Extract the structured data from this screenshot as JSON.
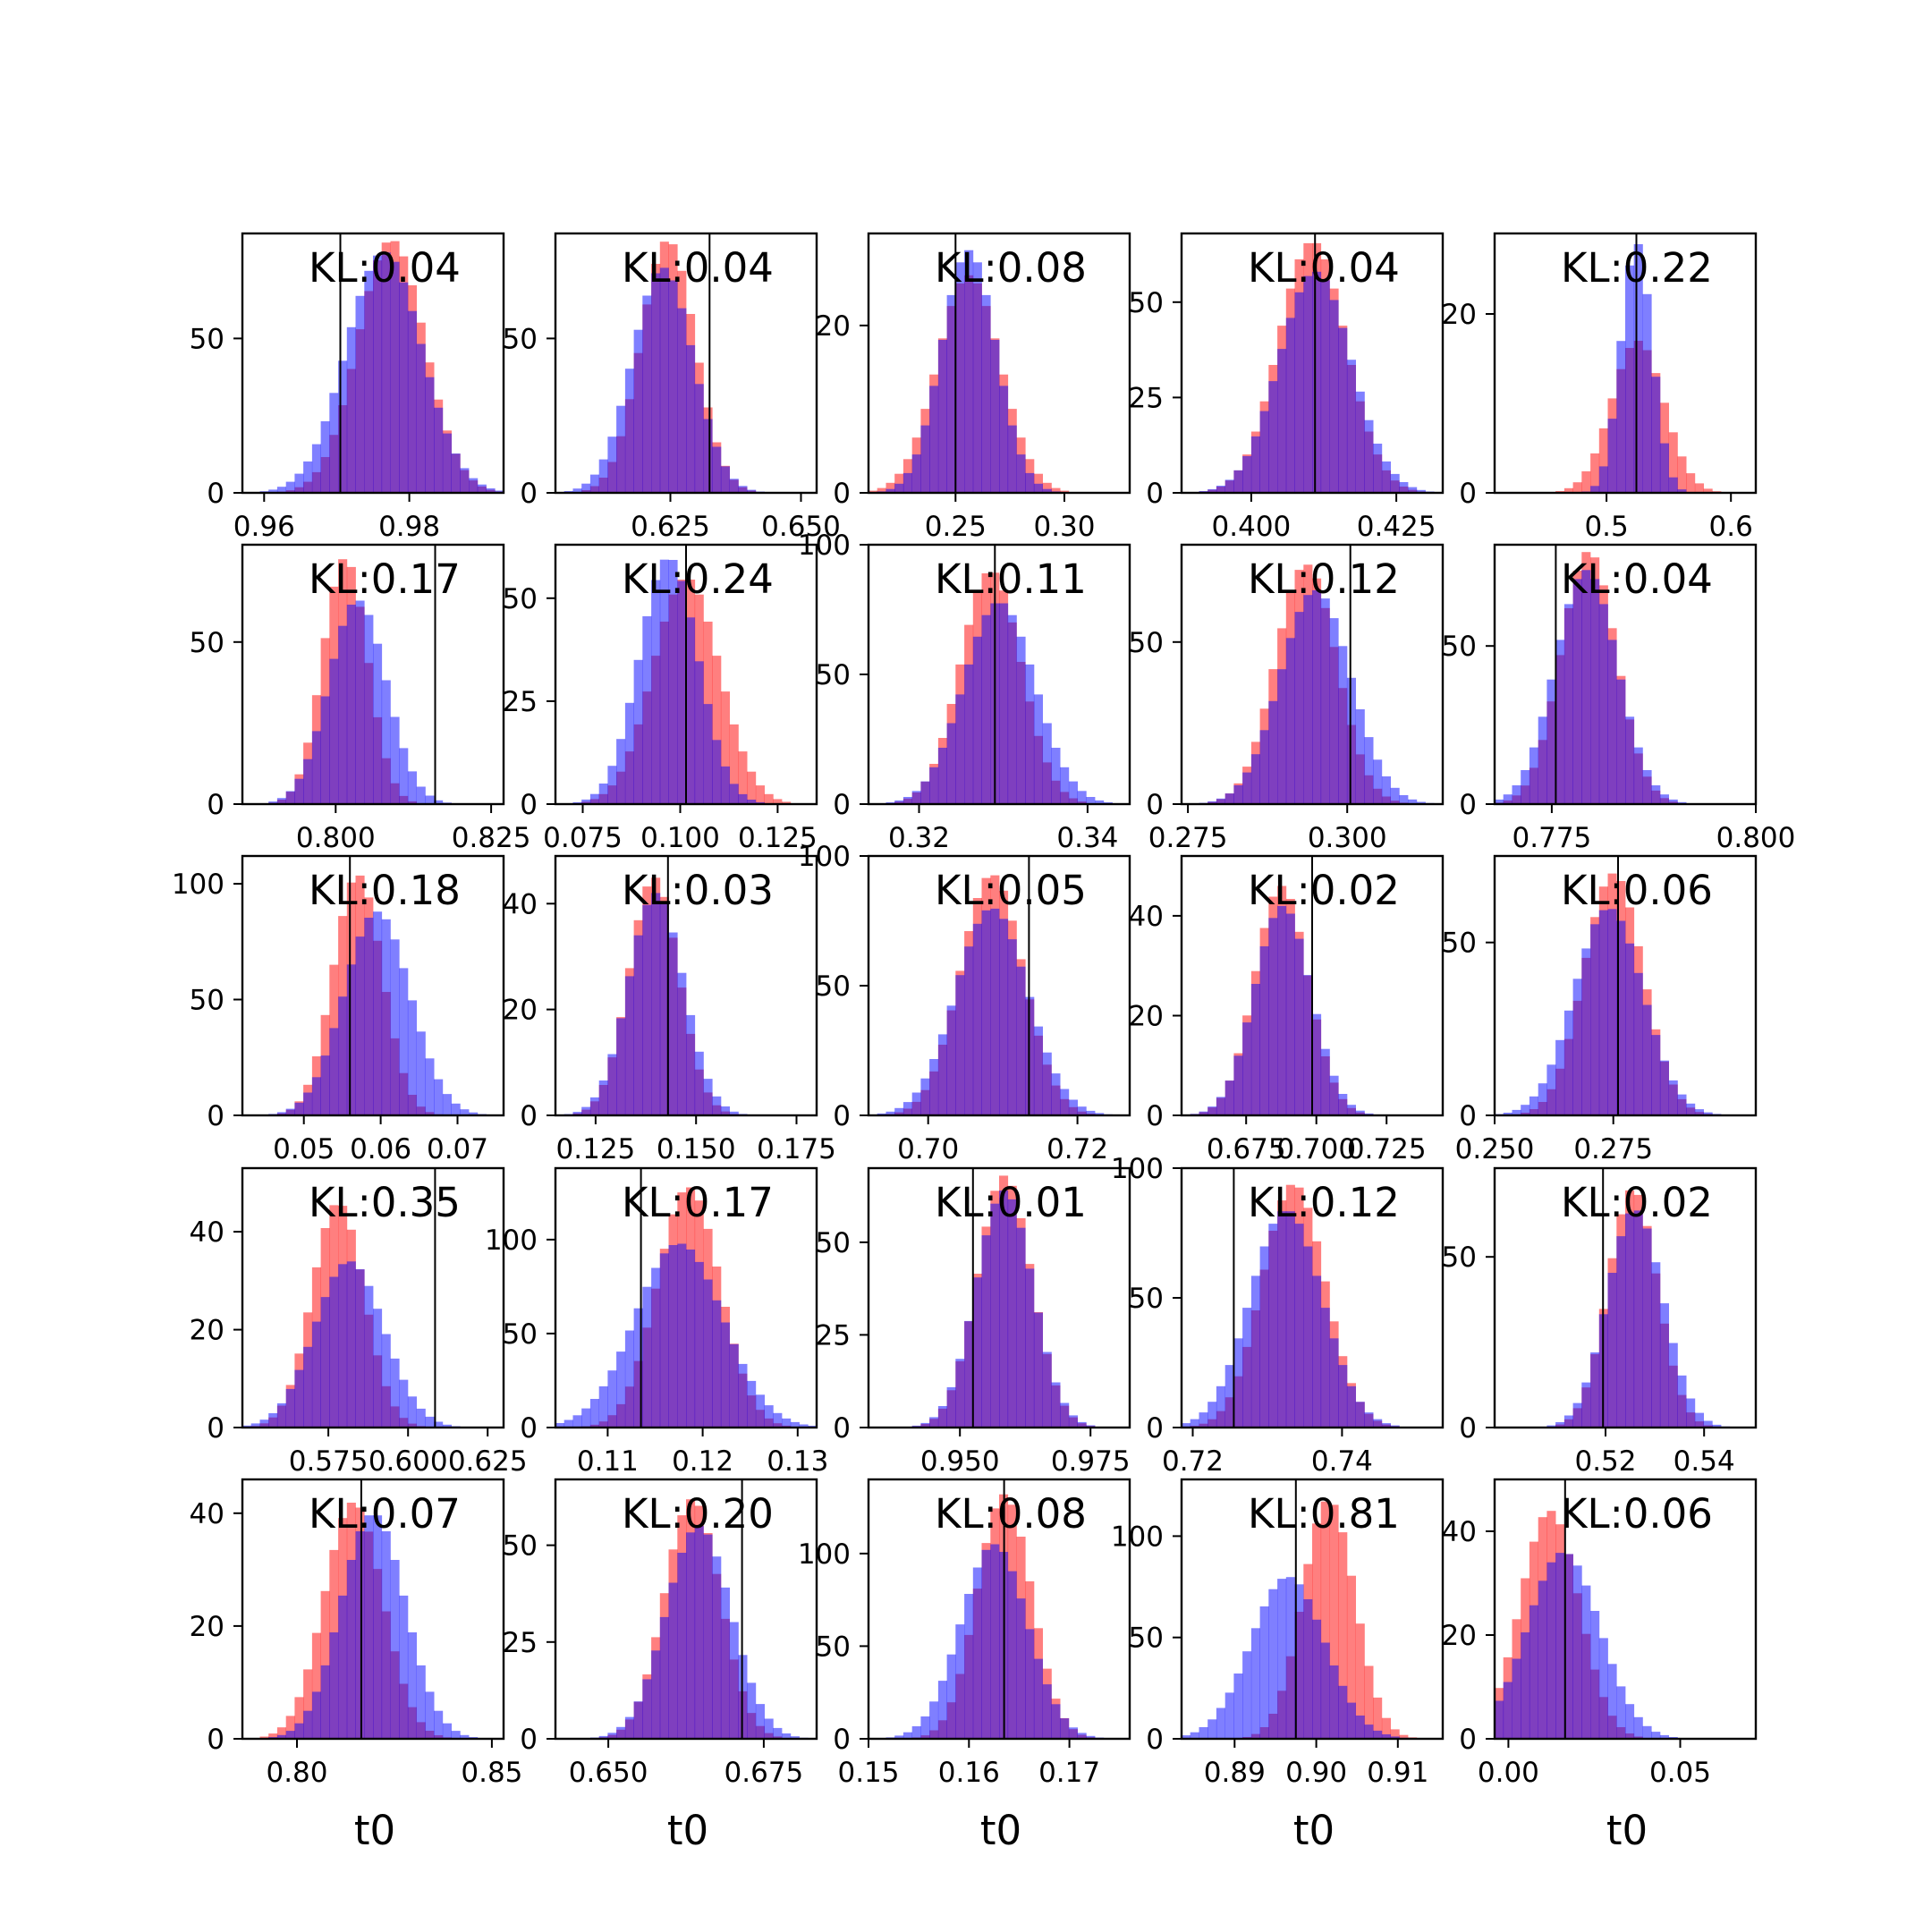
{
  "colors": {
    "red": "#ff0000",
    "blue": "#0000ff",
    "overlap": "#7f3fbf",
    "marker": "#000000",
    "frame": "#000000"
  },
  "chart_data": [
    {
      "type": "histogram",
      "title": "KL:0.04",
      "xlabel": "",
      "xlim": [
        0.957,
        0.993
      ],
      "ylim": [
        0,
        84
      ],
      "xticks": [
        {
          "v": 0.96,
          "l": "0.96"
        },
        {
          "v": 0.98,
          "l": "0.98"
        }
      ],
      "yticks": [
        {
          "v": 0,
          "l": "0"
        },
        {
          "v": 50,
          "l": "50"
        }
      ],
      "marker": 0.9705,
      "red": {
        "mu": 0.9775,
        "sd": 0.0046,
        "peak": 82
      },
      "blue": {
        "mu": 0.9765,
        "sd": 0.0052,
        "peak": 78
      }
    },
    {
      "type": "histogram",
      "title": "KL:0.04",
      "xlabel": "",
      "xlim": [
        0.603,
        0.653
      ],
      "ylim": [
        0,
        84
      ],
      "xticks": [
        {
          "v": 0.625,
          "l": "0.625"
        },
        {
          "v": 0.65,
          "l": "0.650"
        }
      ],
      "yticks": [
        {
          "v": 0,
          "l": "0"
        },
        {
          "v": 50,
          "l": "50"
        }
      ],
      "marker": 0.6325,
      "red": {
        "mu": 0.6245,
        "sd": 0.0052,
        "peak": 82
      },
      "blue": {
        "mu": 0.6235,
        "sd": 0.0058,
        "peak": 73
      }
    },
    {
      "type": "histogram",
      "title": "KL:0.08",
      "xlabel": "",
      "xlim": [
        0.21,
        0.33
      ],
      "ylim": [
        0,
        31
      ],
      "xticks": [
        {
          "v": 0.25,
          "l": "0.25"
        },
        {
          "v": 0.3,
          "l": "0.30"
        }
      ],
      "yticks": [
        {
          "v": 0,
          "l": "0"
        },
        {
          "v": 20,
          "l": "20"
        }
      ],
      "marker": 0.25,
      "red": {
        "mu": 0.256,
        "sd": 0.0145,
        "peak": 26
      },
      "blue": {
        "mu": 0.256,
        "sd": 0.0125,
        "peak": 29
      }
    },
    {
      "type": "histogram",
      "title": "KL:0.04",
      "xlabel": "",
      "xlim": [
        0.388,
        0.433
      ],
      "ylim": [
        0,
        68
      ],
      "xticks": [
        {
          "v": 0.4,
          "l": "0.400"
        },
        {
          "v": 0.425,
          "l": "0.425"
        }
      ],
      "yticks": [
        {
          "v": 0,
          "l": "0"
        },
        {
          "v": 25,
          "l": "25"
        },
        {
          "v": 50,
          "l": "50"
        }
      ],
      "marker": 0.411,
      "red": {
        "mu": 0.4105,
        "sd": 0.0058,
        "peak": 66
      },
      "blue": {
        "mu": 0.411,
        "sd": 0.0062,
        "peak": 58
      }
    },
    {
      "type": "histogram",
      "title": "KL:0.22",
      "xlabel": "",
      "xlim": [
        0.41,
        0.62
      ],
      "ylim": [
        0,
        29
      ],
      "xticks": [
        {
          "v": 0.5,
          "l": "0.5"
        },
        {
          "v": 0.6,
          "l": "0.6"
        }
      ],
      "yticks": [
        {
          "v": 0,
          "l": "0"
        },
        {
          "v": 20,
          "l": "20"
        }
      ],
      "marker": 0.524,
      "red": {
        "mu": 0.525,
        "sd": 0.021,
        "peak": 17
      },
      "blue": {
        "mu": 0.524,
        "sd": 0.0125,
        "peak": 28
      }
    },
    {
      "type": "histogram",
      "title": "KL:0.17",
      "xlabel": "",
      "xlim": [
        0.785,
        0.827
      ],
      "ylim": [
        0,
        80
      ],
      "xticks": [
        {
          "v": 0.8,
          "l": "0.800"
        },
        {
          "v": 0.825,
          "l": "0.825"
        }
      ],
      "yticks": [
        {
          "v": 0,
          "l": "0"
        },
        {
          "v": 50,
          "l": "50"
        }
      ],
      "marker": 0.816,
      "red": {
        "mu": 0.8015,
        "sd": 0.0036,
        "peak": 76
      },
      "blue": {
        "mu": 0.8035,
        "sd": 0.0046,
        "peak": 63
      }
    },
    {
      "type": "histogram",
      "title": "KL:0.24",
      "xlabel": "",
      "xlim": [
        0.068,
        0.135
      ],
      "ylim": [
        0,
        63
      ],
      "xticks": [
        {
          "v": 0.075,
          "l": "0.075"
        },
        {
          "v": 0.1,
          "l": "0.100"
        },
        {
          "v": 0.125,
          "l": "0.125"
        }
      ],
      "yticks": [
        {
          "v": 0,
          "l": "0"
        },
        {
          "v": 25,
          "l": "25"
        },
        {
          "v": 50,
          "l": "50"
        }
      ],
      "marker": 0.1015,
      "red": {
        "mu": 0.1015,
        "sd": 0.0085,
        "peak": 55
      },
      "blue": {
        "mu": 0.097,
        "sd": 0.0075,
        "peak": 60
      }
    },
    {
      "type": "histogram",
      "title": "KL:0.11",
      "xlabel": "",
      "xlim": [
        0.314,
        0.345
      ],
      "ylim": [
        0,
        100
      ],
      "xticks": [
        {
          "v": 0.32,
          "l": "0.32"
        },
        {
          "v": 0.34,
          "l": "0.34"
        }
      ],
      "yticks": [
        {
          "v": 0,
          "l": "0"
        },
        {
          "v": 50,
          "l": "50"
        },
        {
          "v": 100,
          "l": "100"
        }
      ],
      "marker": 0.329,
      "red": {
        "mu": 0.3285,
        "sd": 0.0036,
        "peak": 90
      },
      "blue": {
        "mu": 0.3295,
        "sd": 0.0042,
        "peak": 78
      }
    },
    {
      "type": "histogram",
      "title": "KL:0.12",
      "xlabel": "",
      "xlim": [
        0.274,
        0.315
      ],
      "ylim": [
        0,
        80
      ],
      "xticks": [
        {
          "v": 0.275,
          "l": "0.275"
        },
        {
          "v": 0.3,
          "l": "0.300"
        }
      ],
      "yticks": [
        {
          "v": 0,
          "l": "0"
        },
        {
          "v": 50,
          "l": "50"
        }
      ],
      "marker": 0.3005,
      "red": {
        "mu": 0.2935,
        "sd": 0.0048,
        "peak": 74
      },
      "blue": {
        "mu": 0.295,
        "sd": 0.0055,
        "peak": 66
      }
    },
    {
      "type": "histogram",
      "title": "KL:0.04",
      "xlabel": "",
      "xlim": [
        0.768,
        0.8
      ],
      "ylim": [
        0,
        82
      ],
      "xticks": [
        {
          "v": 0.775,
          "l": "0.775"
        },
        {
          "v": 0.8,
          "l": "0.800"
        }
      ],
      "yticks": [
        {
          "v": 0,
          "l": "0"
        },
        {
          "v": 50,
          "l": "50"
        }
      ],
      "marker": 0.7755,
      "red": {
        "mu": 0.7795,
        "sd": 0.0034,
        "peak": 80
      },
      "blue": {
        "mu": 0.7792,
        "sd": 0.0038,
        "peak": 74
      }
    },
    {
      "type": "histogram",
      "title": "KL:0.18",
      "xlabel": "",
      "xlim": [
        0.042,
        0.076
      ],
      "ylim": [
        0,
        112
      ],
      "xticks": [
        {
          "v": 0.05,
          "l": "0.05"
        },
        {
          "v": 0.06,
          "l": "0.06"
        },
        {
          "v": 0.07,
          "l": "0.07"
        }
      ],
      "yticks": [
        {
          "v": 0,
          "l": "0"
        },
        {
          "v": 50,
          "l": "50"
        },
        {
          "v": 100,
          "l": "100"
        }
      ],
      "marker": 0.056,
      "red": {
        "mu": 0.057,
        "sd": 0.0032,
        "peak": 104
      },
      "blue": {
        "mu": 0.0595,
        "sd": 0.0043,
        "peak": 88
      }
    },
    {
      "type": "histogram",
      "title": "KL:0.03",
      "xlabel": "",
      "xlim": [
        0.115,
        0.18
      ],
      "ylim": [
        0,
        49
      ],
      "xticks": [
        {
          "v": 0.125,
          "l": "0.125"
        },
        {
          "v": 0.15,
          "l": "0.150"
        },
        {
          "v": 0.175,
          "l": "0.175"
        }
      ],
      "yticks": [
        {
          "v": 0,
          "l": "0"
        },
        {
          "v": 20,
          "l": "20"
        },
        {
          "v": 40,
          "l": "40"
        }
      ],
      "marker": 0.143,
      "red": {
        "mu": 0.1395,
        "sd": 0.0062,
        "peak": 45
      },
      "blue": {
        "mu": 0.14,
        "sd": 0.0068,
        "peak": 42
      }
    },
    {
      "type": "histogram",
      "title": "KL:0.05",
      "xlabel": "",
      "xlim": [
        0.692,
        0.727
      ],
      "ylim": [
        0,
        100
      ],
      "xticks": [
        {
          "v": 0.7,
          "l": "0.70"
        },
        {
          "v": 0.72,
          "l": "0.72"
        }
      ],
      "yticks": [
        {
          "v": 0,
          "l": "0"
        },
        {
          "v": 50,
          "l": "50"
        },
        {
          "v": 100,
          "l": "100"
        }
      ],
      "marker": 0.7135,
      "red": {
        "mu": 0.7085,
        "sd": 0.0042,
        "peak": 93
      },
      "blue": {
        "mu": 0.7085,
        "sd": 0.0048,
        "peak": 80
      }
    },
    {
      "type": "histogram",
      "title": "KL:0.02",
      "xlabel": "",
      "xlim": [
        0.652,
        0.745
      ],
      "ylim": [
        0,
        52
      ],
      "xticks": [
        {
          "v": 0.675,
          "l": "0.675"
        },
        {
          "v": 0.7,
          "l": "0.700"
        },
        {
          "v": 0.725,
          "l": "0.725"
        }
      ],
      "yticks": [
        {
          "v": 0,
          "l": "0"
        },
        {
          "v": 20,
          "l": "20"
        },
        {
          "v": 40,
          "l": "40"
        }
      ],
      "marker": 0.6985,
      "red": {
        "mu": 0.6875,
        "sd": 0.0095,
        "peak": 46
      },
      "blue": {
        "mu": 0.688,
        "sd": 0.01,
        "peak": 42
      }
    },
    {
      "type": "histogram",
      "title": "KL:0.06",
      "xlabel": "",
      "xlim": [
        0.25,
        0.305
      ],
      "ylim": [
        0,
        75
      ],
      "xticks": [
        {
          "v": 0.25,
          "l": "0.250"
        },
        {
          "v": 0.275,
          "l": "0.275"
        }
      ],
      "yticks": [
        {
          "v": 0,
          "l": "0"
        },
        {
          "v": 50,
          "l": "50"
        }
      ],
      "marker": 0.276,
      "red": {
        "mu": 0.275,
        "sd": 0.0062,
        "peak": 70
      },
      "blue": {
        "mu": 0.274,
        "sd": 0.0072,
        "peak": 60
      }
    },
    {
      "type": "histogram",
      "title": "KL:0.35",
      "xlabel": "",
      "xlim": [
        0.548,
        0.63
      ],
      "ylim": [
        0,
        53
      ],
      "xticks": [
        {
          "v": 0.575,
          "l": "0.575"
        },
        {
          "v": 0.6,
          "l": "0.600"
        },
        {
          "v": 0.625,
          "l": "0.625"
        }
      ],
      "yticks": [
        {
          "v": 0,
          "l": "0"
        },
        {
          "v": 20,
          "l": "20"
        },
        {
          "v": 40,
          "l": "40"
        }
      ],
      "marker": 0.6085,
      "red": {
        "mu": 0.578,
        "sd": 0.0082,
        "peak": 46
      },
      "blue": {
        "mu": 0.5815,
        "sd": 0.0108,
        "peak": 34
      }
    },
    {
      "type": "histogram",
      "title": "KL:0.17",
      "xlabel": "",
      "xlim": [
        0.1045,
        0.132
      ],
      "ylim": [
        0,
        138
      ],
      "xticks": [
        {
          "v": 0.11,
          "l": "0.11"
        },
        {
          "v": 0.12,
          "l": "0.12"
        },
        {
          "v": 0.13,
          "l": "0.13"
        }
      ],
      "yticks": [
        {
          "v": 0,
          "l": "0"
        },
        {
          "v": 50,
          "l": "50"
        },
        {
          "v": 100,
          "l": "100"
        }
      ],
      "marker": 0.1135,
      "red": {
        "mu": 0.1185,
        "sd": 0.0033,
        "peak": 128
      },
      "blue": {
        "mu": 0.1175,
        "sd": 0.0046,
        "peak": 98
      }
    },
    {
      "type": "histogram",
      "title": "KL:0.01",
      "xlabel": "",
      "xlim": [
        0.9325,
        0.9825
      ],
      "ylim": [
        0,
        70
      ],
      "xticks": [
        {
          "v": 0.95,
          "l": "0.950"
        },
        {
          "v": 0.975,
          "l": "0.975"
        }
      ],
      "yticks": [
        {
          "v": 0,
          "l": "0"
        },
        {
          "v": 25,
          "l": "25"
        },
        {
          "v": 50,
          "l": "50"
        }
      ],
      "marker": 0.9525,
      "red": {
        "mu": 0.9585,
        "sd": 0.0052,
        "peak": 68
      },
      "blue": {
        "mu": 0.9585,
        "sd": 0.0054,
        "peak": 64
      }
    },
    {
      "type": "histogram",
      "title": "KL:0.12",
      "xlabel": "",
      "xlim": [
        0.7185,
        0.7535
      ],
      "ylim": [
        0,
        100
      ],
      "xticks": [
        {
          "v": 0.72,
          "l": "0.72"
        },
        {
          "v": 0.74,
          "l": "0.74"
        }
      ],
      "yticks": [
        {
          "v": 0,
          "l": "0"
        },
        {
          "v": 50,
          "l": "50"
        },
        {
          "v": 100,
          "l": "100"
        }
      ],
      "marker": 0.7255,
      "red": {
        "mu": 0.7335,
        "sd": 0.0042,
        "peak": 94
      },
      "blue": {
        "mu": 0.7325,
        "sd": 0.0048,
        "peak": 84
      }
    },
    {
      "type": "histogram",
      "title": "KL:0.02",
      "xlabel": "",
      "xlim": [
        0.4975,
        0.5505
      ],
      "ylim": [
        0,
        76
      ],
      "xticks": [
        {
          "v": 0.52,
          "l": "0.52"
        },
        {
          "v": 0.54,
          "l": "0.54"
        }
      ],
      "yticks": [
        {
          "v": 0,
          "l": "0"
        },
        {
          "v": 50,
          "l": "50"
        }
      ],
      "marker": 0.5195,
      "red": {
        "mu": 0.5255,
        "sd": 0.005,
        "peak": 70
      },
      "blue": {
        "mu": 0.526,
        "sd": 0.0056,
        "peak": 64
      }
    },
    {
      "type": "histogram",
      "title": "KL:0.07",
      "xlabel": "t0",
      "xlim": [
        0.786,
        0.853
      ],
      "ylim": [
        0,
        46
      ],
      "xticks": [
        {
          "v": 0.8,
          "l": "0.80"
        },
        {
          "v": 0.85,
          "l": "0.85"
        }
      ],
      "yticks": [
        {
          "v": 0,
          "l": "0"
        },
        {
          "v": 20,
          "l": "20"
        },
        {
          "v": 40,
          "l": "40"
        }
      ],
      "marker": 0.8165,
      "red": {
        "mu": 0.8145,
        "sd": 0.0075,
        "peak": 42
      },
      "blue": {
        "mu": 0.8195,
        "sd": 0.0082,
        "peak": 40
      }
    },
    {
      "type": "histogram",
      "title": "KL:0.20",
      "xlabel": "t0",
      "xlim": [
        0.6415,
        0.6835
      ],
      "ylim": [
        0,
        67
      ],
      "xticks": [
        {
          "v": 0.65,
          "l": "0.650"
        },
        {
          "v": 0.675,
          "l": "0.675"
        }
      ],
      "yticks": [
        {
          "v": 0,
          "l": "0"
        },
        {
          "v": 25,
          "l": "25"
        },
        {
          "v": 50,
          "l": "50"
        }
      ],
      "marker": 0.6715,
      "red": {
        "mu": 0.6635,
        "sd": 0.0045,
        "peak": 62
      },
      "blue": {
        "mu": 0.6645,
        "sd": 0.0052,
        "peak": 55
      }
    },
    {
      "type": "histogram",
      "title": "KL:0.08",
      "xlabel": "t0",
      "xlim": [
        0.15,
        0.176
      ],
      "ylim": [
        0,
        140
      ],
      "xticks": [
        {
          "v": 0.15,
          "l": "0.15"
        },
        {
          "v": 0.16,
          "l": "0.16"
        },
        {
          "v": 0.17,
          "l": "0.17"
        }
      ],
      "yticks": [
        {
          "v": 0,
          "l": "0"
        },
        {
          "v": 50,
          "l": "50"
        },
        {
          "v": 100,
          "l": "100"
        }
      ],
      "marker": 0.1635,
      "red": {
        "mu": 0.1635,
        "sd": 0.0027,
        "peak": 132
      },
      "blue": {
        "mu": 0.1625,
        "sd": 0.0033,
        "peak": 105
      }
    },
    {
      "type": "histogram",
      "title": "KL:0.81",
      "xlabel": "t0",
      "xlim": [
        0.8835,
        0.9155
      ],
      "ylim": [
        0,
        128
      ],
      "xticks": [
        {
          "v": 0.89,
          "l": "0.89"
        },
        {
          "v": 0.9,
          "l": "0.90"
        },
        {
          "v": 0.91,
          "l": "0.91"
        }
      ],
      "yticks": [
        {
          "v": 0,
          "l": "0"
        },
        {
          "v": 50,
          "l": "50"
        },
        {
          "v": 100,
          "l": "100"
        }
      ],
      "marker": 0.8975,
      "red": {
        "mu": 0.9015,
        "sd": 0.0032,
        "peak": 118
      },
      "blue": {
        "mu": 0.8965,
        "sd": 0.0045,
        "peak": 80
      }
    },
    {
      "type": "histogram",
      "title": "KL:0.06",
      "xlabel": "t0",
      "xlim": [
        -0.004,
        0.072
      ],
      "ylim": [
        0,
        50
      ],
      "xticks": [
        {
          "v": 0,
          "l": "0.00"
        },
        {
          "v": 0.05,
          "l": "0.05"
        }
      ],
      "yticks": [
        {
          "v": 0,
          "l": "0"
        },
        {
          "v": 20,
          "l": "20"
        },
        {
          "v": 40,
          "l": "40"
        }
      ],
      "marker": 0.0165,
      "red": {
        "mu": 0.012,
        "sd": 0.0085,
        "peak": 44
      },
      "blue": {
        "mu": 0.016,
        "sd": 0.0105,
        "peak": 36
      }
    }
  ]
}
